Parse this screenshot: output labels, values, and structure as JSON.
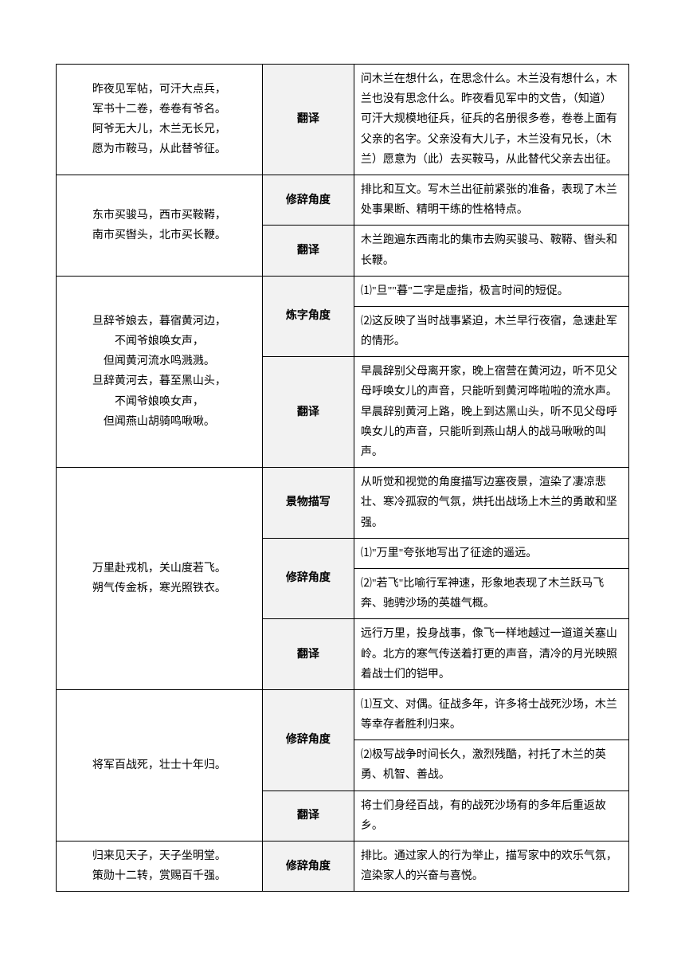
{
  "rows": [
    {
      "poem": "昨夜见军帖，可汗大点兵，\n军书十二卷，卷卷有爷名。\n阿爷无大儿，木兰无长兄，\n愿为市鞍马，从此替爷征。",
      "aspects": [
        {
          "label": "翻译",
          "text": "问木兰在想什么，在思念什么。木兰没有想什么，木兰也没有思念什么。昨夜看见军中的文告，（知道）可汗大规模地征兵，征兵的名册很多卷，卷卷上面有父亲的名字。父亲没有大儿子，木兰没有兄长，（木兰）愿意为（此）去买鞍马，从此替代父亲去出征。"
        }
      ]
    },
    {
      "poem": "东市买骏马，西市买鞍鞯，\n南市买辔头，北市买长鞭。",
      "aspects": [
        {
          "label": "修辞角度",
          "text": "排比和互文。写木兰出征前紧张的准备，表现了木兰处事果断、精明干练的性格特点。"
        },
        {
          "label": "翻译",
          "text": "木兰跑遍东西南北的集市去购买骏马、鞍鞯、辔头和长鞭。"
        }
      ]
    },
    {
      "poem": "旦辞爷娘去，暮宿黄河边，\n不闻爷娘唤女声，\n但闻黄河流水鸣溅溅。\n旦辞黄河去，暮至黑山头，\n不闻爷娘唤女声，\n但闻燕山胡骑鸣啾啾。",
      "aspects": [
        {
          "label": "炼字角度",
          "text": "⑴\"旦\"\"暮\"二字是虚指，极言时间的短促。"
        },
        {
          "label": "",
          "text": "⑵这反映了当时战事紧迫，木兰早行夜宿，急速赴军的情形。"
        },
        {
          "label": "翻译",
          "text": "早晨辞别父母离开家，晚上宿营在黄河边，听不见父母呼唤女儿的声音，只能听到黄河哗啦啦的流水声。早晨辞别黄河上路，晚上到达黑山头，听不见父母呼唤女儿的声音，只能听到燕山胡人的战马啾啾的叫声。"
        }
      ]
    },
    {
      "poem": "万里赴戎机，关山度若飞。\n朔气传金柝，寒光照铁衣。",
      "aspects": [
        {
          "label": "景物描写",
          "text": "从听觉和视觉的角度描写边塞夜景，渲染了凄凉悲壮、寒冷孤寂的气氛，烘托出战场上木兰的勇敢和坚强。"
        },
        {
          "label": "修辞角度",
          "text": "⑴\"万里\"夸张地写出了征途的遥远。"
        },
        {
          "label": "",
          "text": "⑵\"若飞\"比喻行军神速，形象地表现了木兰跃马飞奔、驰骋沙场的英雄气概。"
        },
        {
          "label": "翻译",
          "text": "远行万里，投身战事，像飞一样地越过一道道关塞山岭。北方的寒气传送着打更的声音，清冷的月光映照着战士们的铠甲。"
        }
      ]
    },
    {
      "poem": "将军百战死，壮士十年归。",
      "aspects": [
        {
          "label": "修辞角度",
          "text": "⑴互文、对偶。征战多年，许多将士战死沙场，木兰等幸存者胜利归来。"
        },
        {
          "label": "",
          "text": "⑵极写战争时间长久，激烈残酷，衬托了木兰的英勇、机智、善战。"
        },
        {
          "label": "翻译",
          "text": "将士们身经百战，有的战死沙场有的多年后重返故乡。"
        }
      ]
    },
    {
      "poem": "归来见天子，天子坐明堂。\n策勋十二转，赏赐百千强。",
      "aspects": [
        {
          "label": "修辞角度",
          "text": "排比。通过家人的行为举止，描写家中的欢乐气氛，渲染家人的兴奋与喜悦。"
        }
      ]
    }
  ]
}
